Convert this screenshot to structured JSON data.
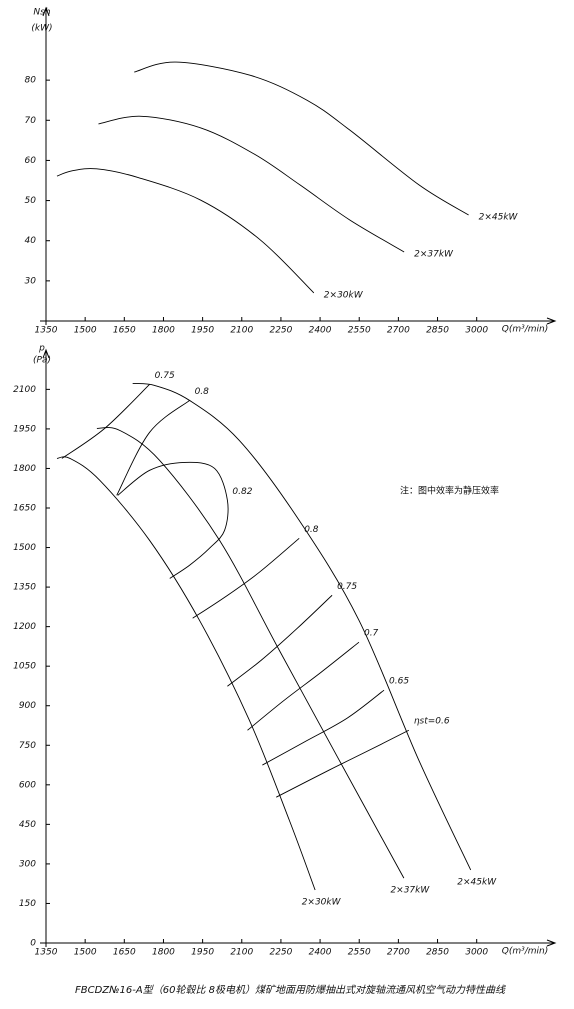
{
  "chart_data": [
    {
      "type": "line",
      "y_label": "Nsh",
      "y_unit": "(kW)",
      "x_label": "Q(m³/min)",
      "xlim": [
        1350,
        3300
      ],
      "xticks": [
        1350,
        1500,
        1650,
        1800,
        1950,
        2100,
        2250,
        2400,
        2550,
        2700,
        2850,
        3000
      ],
      "ylim": [
        20,
        90
      ],
      "yticks": [
        30,
        40,
        50,
        60,
        70,
        80
      ],
      "series": [
        {
          "name": "2×30kW",
          "color": "#000000",
          "x": [
            1392,
            1450,
            1544,
            1700,
            1943,
            2171,
            2376
          ],
          "values": [
            56.1,
            57.4,
            57.9,
            55.8,
            50.1,
            40.2,
            27.0
          ]
        },
        {
          "name": "2×37kW",
          "color": "#000000",
          "x": [
            1551,
            1715,
            1943,
            2150,
            2323,
            2513,
            2722
          ],
          "values": [
            69.1,
            71.0,
            68.1,
            61.5,
            53.9,
            45.2,
            37.2
          ]
        },
        {
          "name": "2×45kW",
          "color": "#000000",
          "x": [
            1688,
            1848,
            2133,
            2350,
            2513,
            2779,
            2969
          ],
          "values": [
            82.0,
            84.5,
            81.2,
            75.0,
            67.6,
            53.9,
            46.4
          ]
        }
      ]
    },
    {
      "type": "line",
      "y_label": "p",
      "y_unit": "(Pa)",
      "x_label": "Q(m³/min)",
      "note": "注：图中效率为静压效率",
      "caption": "FBCDZ№16-A型（60轮毂比 8极电机）煤矿地面用防爆抽出式对旋轴流通风机空气动力特性曲线",
      "xlim": [
        1350,
        3300
      ],
      "xticks": [
        1350,
        1500,
        1650,
        1800,
        1950,
        2100,
        2250,
        2400,
        2550,
        2700,
        2850,
        3000
      ],
      "ylim": [
        0,
        2200
      ],
      "yticks": [
        0,
        150,
        300,
        450,
        600,
        750,
        900,
        1050,
        1200,
        1350,
        1500,
        1650,
        1800,
        1950,
        2100
      ],
      "series": [
        {
          "name": "2×30kW",
          "color": "#000000",
          "x": [
            1392,
            1442,
            1556,
            1747,
            1938,
            2129,
            2282,
            2381
          ],
          "values": [
            1838,
            1838,
            1755,
            1527,
            1224,
            845,
            466,
            201
          ]
        },
        {
          "name": "2×37kW",
          "color": "#000000",
          "x": [
            1545,
            1633,
            1785,
            2015,
            2244,
            2473,
            2721
          ],
          "values": [
            1952,
            1944,
            1831,
            1527,
            1110,
            694,
            246
          ]
        },
        {
          "name": "2×45kW",
          "color": "#000000",
          "x": [
            1682,
            1766,
            1900,
            2091,
            2320,
            2549,
            2778,
            2977
          ],
          "values": [
            2122,
            2115,
            2058,
            1906,
            1603,
            1224,
            694,
            277
          ]
        }
      ],
      "efficiency_curves": [
        {
          "name": "0.75",
          "x": [
            1747,
            1575,
            1411
          ],
          "values": [
            2119,
            1952,
            1838
          ]
        },
        {
          "name": "0.8",
          "x": [
            1900,
            1747,
            1621
          ],
          "values": [
            2058,
            1937,
            1698
          ]
        },
        {
          "name": "0.82",
          "x": [
            1625,
            1747,
            1881,
            1996,
            2045,
            2034,
            1976,
            1900,
            1824
          ],
          "values": [
            1698,
            1793,
            1823,
            1800,
            1679,
            1565,
            1497,
            1433,
            1383
          ]
        },
        {
          "name": "0.8",
          "x": [
            2320,
            2167,
            2034,
            1912
          ],
          "values": [
            1535,
            1406,
            1311,
            1232
          ]
        },
        {
          "name": "0.75",
          "x": [
            2446,
            2313,
            2175,
            2045
          ],
          "values": [
            1319,
            1194,
            1073,
            974
          ]
        },
        {
          "name": "0.7",
          "x": [
            2549,
            2404,
            2263,
            2122
          ],
          "values": [
            1141,
            1027,
            921,
            807
          ]
        },
        {
          "name": "0.65",
          "x": [
            2645,
            2504,
            2339,
            2179
          ],
          "values": [
            959,
            853,
            762,
            675
          ]
        },
        {
          "name": "ηst=0.6",
          "x": [
            2740,
            2588,
            2435,
            2232
          ],
          "values": [
            807,
            731,
            656,
            553
          ]
        }
      ]
    }
  ]
}
